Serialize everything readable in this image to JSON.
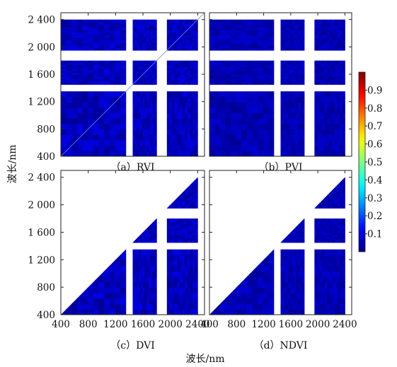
{
  "chart_data": {
    "type": "heatmap",
    "xlabel": "波长/nm",
    "ylabel": "波长/nm",
    "x_ticks": [
      "400",
      "800",
      "1200",
      "1600",
      "2000",
      "2400"
    ],
    "y_ticks": [
      "400",
      "800",
      "1 200",
      "1 600",
      "2 000",
      "2 400"
    ],
    "xlim": [
      400,
      2500
    ],
    "ylim": [
      400,
      2500
    ],
    "bands_nm": [
      [
        400,
        1350
      ],
      [
        1450,
        1800
      ],
      [
        1950,
        2400
      ]
    ],
    "colormap": "jet",
    "colorbar": {
      "range": [
        0,
        1
      ],
      "ticks": [
        "0.1",
        "0.2",
        "0.3",
        "0.4",
        "0.5",
        "0.6",
        "0.7",
        "0.8",
        "0.9"
      ]
    },
    "panels": [
      {
        "title": "（a）RVI",
        "mask": "full",
        "value_range": [
          0.02,
          0.1
        ],
        "diagonal_line": true
      },
      {
        "title": "（b）PVI",
        "mask": "full",
        "value_range": [
          0.02,
          0.08
        ],
        "diagonal_line": false
      },
      {
        "title": "（c）DVI",
        "mask": "lower-triangle",
        "value_range": [
          0.02,
          0.1
        ],
        "diagonal_line": false
      },
      {
        "title": "（d）NDVI",
        "mask": "lower-triangle",
        "value_range": [
          0.02,
          0.08
        ],
        "diagonal_line": false
      }
    ]
  },
  "colors": {
    "low": "#00008f",
    "fill": "#0f27c4",
    "high": "#7f0000",
    "frame": "#222222"
  }
}
